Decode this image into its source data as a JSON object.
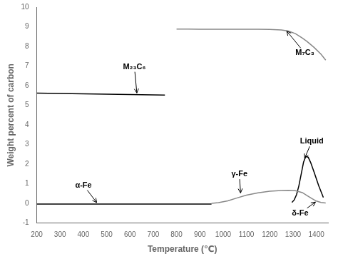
{
  "chart_data": {
    "type": "line",
    "xlabel": "Temperature (℃)",
    "ylabel": "Weight percent of carbon",
    "xlim": [
      200,
      1450
    ],
    "ylim": [
      -1,
      10
    ],
    "xticks": [
      200,
      300,
      400,
      500,
      600,
      700,
      800,
      900,
      1000,
      1100,
      1200,
      1300,
      1400
    ],
    "yticks": [
      -1,
      0,
      1,
      2,
      3,
      4,
      5,
      6,
      7,
      8,
      9,
      10
    ],
    "grid": false,
    "series": [
      {
        "color": "#000000",
        "x": [
          200,
          750
        ],
        "values": [
          5.62,
          5.52
        ]
      },
      {
        "color": "#888888",
        "x": [
          800,
          850,
          900,
          950,
          1000,
          1050,
          1100,
          1150,
          1200,
          1250,
          1280,
          1310,
          1340,
          1360,
          1390,
          1420,
          1440
        ],
        "values": [
          8.88,
          8.88,
          8.87,
          8.87,
          8.87,
          8.87,
          8.87,
          8.87,
          8.86,
          8.84,
          8.78,
          8.65,
          8.42,
          8.25,
          7.95,
          7.6,
          7.3
        ]
      },
      {
        "color": "#000000",
        "x": [
          200,
          950
        ],
        "values": [
          -0.03,
          -0.03
        ]
      },
      {
        "color": "#888888",
        "x": [
          950,
          980,
          1020,
          1060,
          1100,
          1150,
          1200,
          1250,
          1280,
          1310,
          1340,
          1360,
          1380,
          1400,
          1420,
          1440
        ],
        "values": [
          0.0,
          0.04,
          0.13,
          0.28,
          0.42,
          0.54,
          0.62,
          0.66,
          0.67,
          0.65,
          0.55,
          0.4,
          0.25,
          0.12,
          0.05,
          0.02
        ]
      },
      {
        "color": "#000000",
        "x": [
          1295,
          1305,
          1315,
          1325,
          1335,
          1345,
          1355,
          1365,
          1375,
          1390,
          1410,
          1430
        ],
        "values": [
          0.05,
          0.18,
          0.45,
          0.9,
          1.5,
          2.1,
          2.4,
          2.35,
          2.1,
          1.6,
          0.9,
          0.3
        ]
      }
    ],
    "annotations": [
      {
        "text": "M₂₃C₆",
        "xy": [
          630,
          5.57
        ],
        "xytext": [
          570,
          6.85
        ]
      },
      {
        "text": "M₇C₃",
        "xy": [
          1270,
          8.82
        ],
        "xytext": [
          1310,
          7.55
        ]
      },
      {
        "text": "α-Fe",
        "xy": [
          460,
          0.0
        ],
        "xytext": [
          365,
          0.82
        ]
      },
      {
        "text": "γ-Fe",
        "xy": [
          1075,
          0.48
        ],
        "xytext": [
          1035,
          1.38
        ]
      },
      {
        "text": "Liquid",
        "xy": [
          1348,
          2.25
        ],
        "xytext": [
          1330,
          3.05
        ]
      },
      {
        "text": "δ-Fe",
        "xy": [
          1400,
          0.1
        ],
        "xytext": [
          1295,
          -0.6
        ]
      }
    ]
  }
}
